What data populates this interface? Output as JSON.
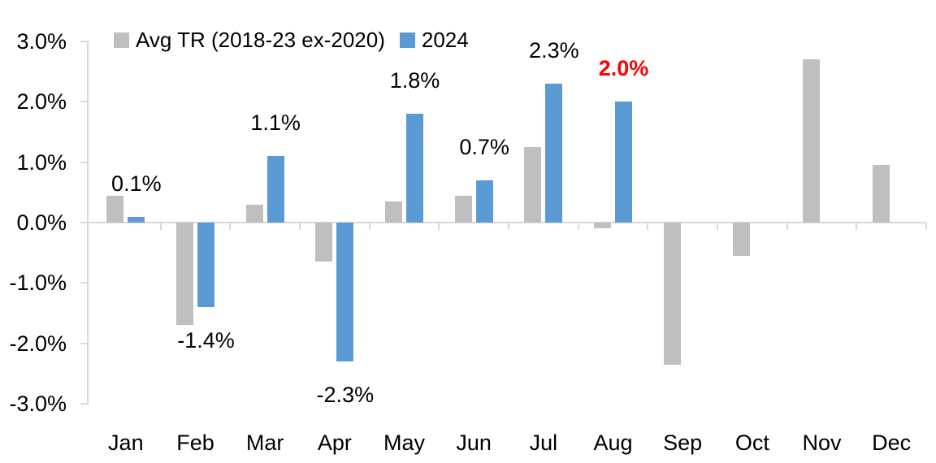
{
  "chart": {
    "background": "#FFFFFF",
    "axis_color": "#D9D9D9",
    "text_color": "#000000",
    "highlight_color": "#FF0000"
  },
  "chart_data": {
    "type": "bar",
    "title": "",
    "xlabel": "",
    "ylabel": "",
    "categories": [
      "Jan",
      "Feb",
      "Mar",
      "Apr",
      "May",
      "Jun",
      "Jul",
      "Aug",
      "Sep",
      "Oct",
      "Nov",
      "Dec"
    ],
    "series": [
      {
        "name": "Avg TR (2018-23 ex-2020)",
        "color": "#BFBFBF",
        "values": [
          0.45,
          -1.7,
          0.3,
          -0.65,
          0.35,
          0.45,
          1.25,
          -0.1,
          -2.35,
          -0.55,
          2.7,
          0.95
        ]
      },
      {
        "name": "2024",
        "color": "#5B9BD5",
        "values": [
          0.1,
          -1.4,
          1.1,
          -2.3,
          1.8,
          0.7,
          2.3,
          2.0,
          null,
          null,
          null,
          null
        ],
        "data_labels": [
          {
            "text": "0.1%",
            "color": "#000000",
            "bold": false
          },
          {
            "text": "-1.4%",
            "color": "#000000",
            "bold": false
          },
          {
            "text": "1.1%",
            "color": "#000000",
            "bold": false
          },
          {
            "text": "-2.3%",
            "color": "#000000",
            "bold": false
          },
          {
            "text": "1.8%",
            "color": "#000000",
            "bold": false
          },
          {
            "text": "0.7%",
            "color": "#000000",
            "bold": false
          },
          {
            "text": "2.3%",
            "color": "#000000",
            "bold": false
          },
          {
            "text": "2.0%",
            "color": "#FF0000",
            "bold": true
          },
          null,
          null,
          null,
          null
        ]
      }
    ],
    "ylim": [
      -3,
      3
    ],
    "ytick_labels": [
      "3.0%",
      "2.0%",
      "1.0%",
      "0.0%",
      "-1.0%",
      "-2.0%",
      "-3.0%"
    ],
    "grid": false,
    "legend_position": "top"
  }
}
